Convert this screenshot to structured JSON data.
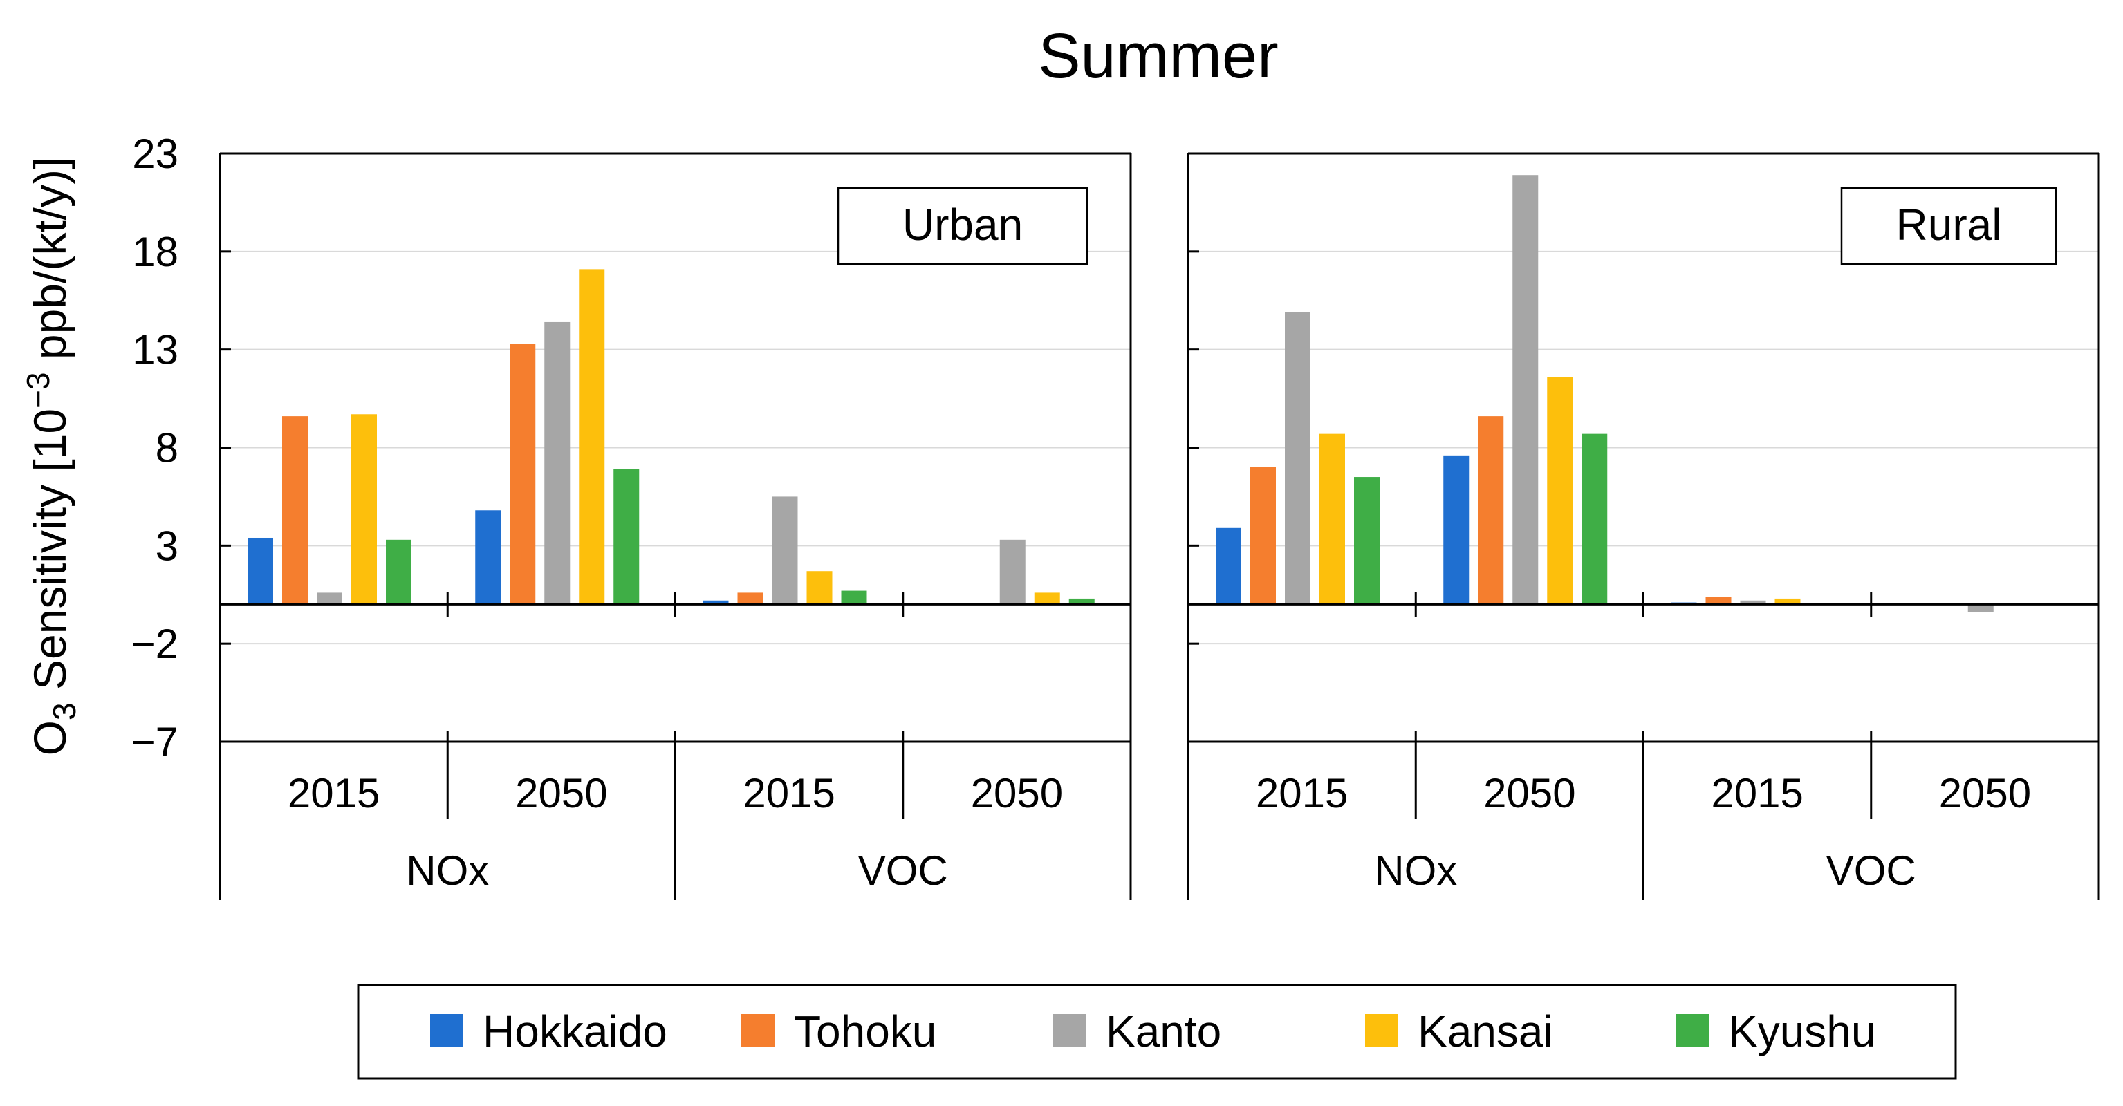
{
  "chart_data": {
    "type": "bar",
    "title": "Summer",
    "ylabel_main": "O",
    "ylabel_sub": "3",
    "ylabel_rest": " Sensitivity [10",
    "ylabel_sup": "−3",
    "ylabel_end": " ppb/(kt/y)]",
    "ylim": [
      -7,
      23
    ],
    "yticks": [
      23,
      18,
      13,
      8,
      3,
      -2,
      -7
    ],
    "ytick_labels": [
      "23",
      "18",
      "13",
      "8",
      "3",
      "−2",
      "−7"
    ],
    "colors": {
      "Hokkaido": "#1f6fd0",
      "Tohoku": "#f57e2e",
      "Kanto": "#a6a6a6",
      "Kansai": "#fdbf0c",
      "Kyushu": "#3fae46"
    },
    "panels": [
      {
        "name": "Urban",
        "groups": [
          {
            "year": "2015",
            "pollutant": "NOx",
            "values": [
              3.4,
              9.6,
              0.6,
              9.7,
              3.3
            ]
          },
          {
            "year": "2050",
            "pollutant": "NOx",
            "values": [
              4.8,
              13.3,
              14.4,
              17.1,
              6.9
            ]
          },
          {
            "year": "2015",
            "pollutant": "VOC",
            "values": [
              0.2,
              0.6,
              5.5,
              1.7,
              0.7
            ]
          },
          {
            "year": "2050",
            "pollutant": "VOC",
            "values": [
              0.0,
              0.0,
              3.3,
              0.6,
              0.3
            ]
          }
        ]
      },
      {
        "name": "Rural",
        "groups": [
          {
            "year": "2015",
            "pollutant": "NOx",
            "values": [
              3.9,
              7.0,
              14.9,
              8.7,
              6.5
            ]
          },
          {
            "year": "2050",
            "pollutant": "NOx",
            "values": [
              7.6,
              9.6,
              21.9,
              11.6,
              8.7
            ]
          },
          {
            "year": "2015",
            "pollutant": "VOC",
            "values": [
              0.1,
              0.4,
              0.2,
              0.3,
              0.0
            ]
          },
          {
            "year": "2050",
            "pollutant": "VOC",
            "values": [
              0.0,
              0.0,
              -0.4,
              0.0,
              0.0
            ]
          }
        ]
      }
    ],
    "pollutants": [
      "NOx",
      "VOC"
    ],
    "legend": [
      "Hokkaido",
      "Tohoku",
      "Kanto",
      "Kansai",
      "Kyushu"
    ],
    "legend_position": "bottom-center",
    "grid": true
  }
}
